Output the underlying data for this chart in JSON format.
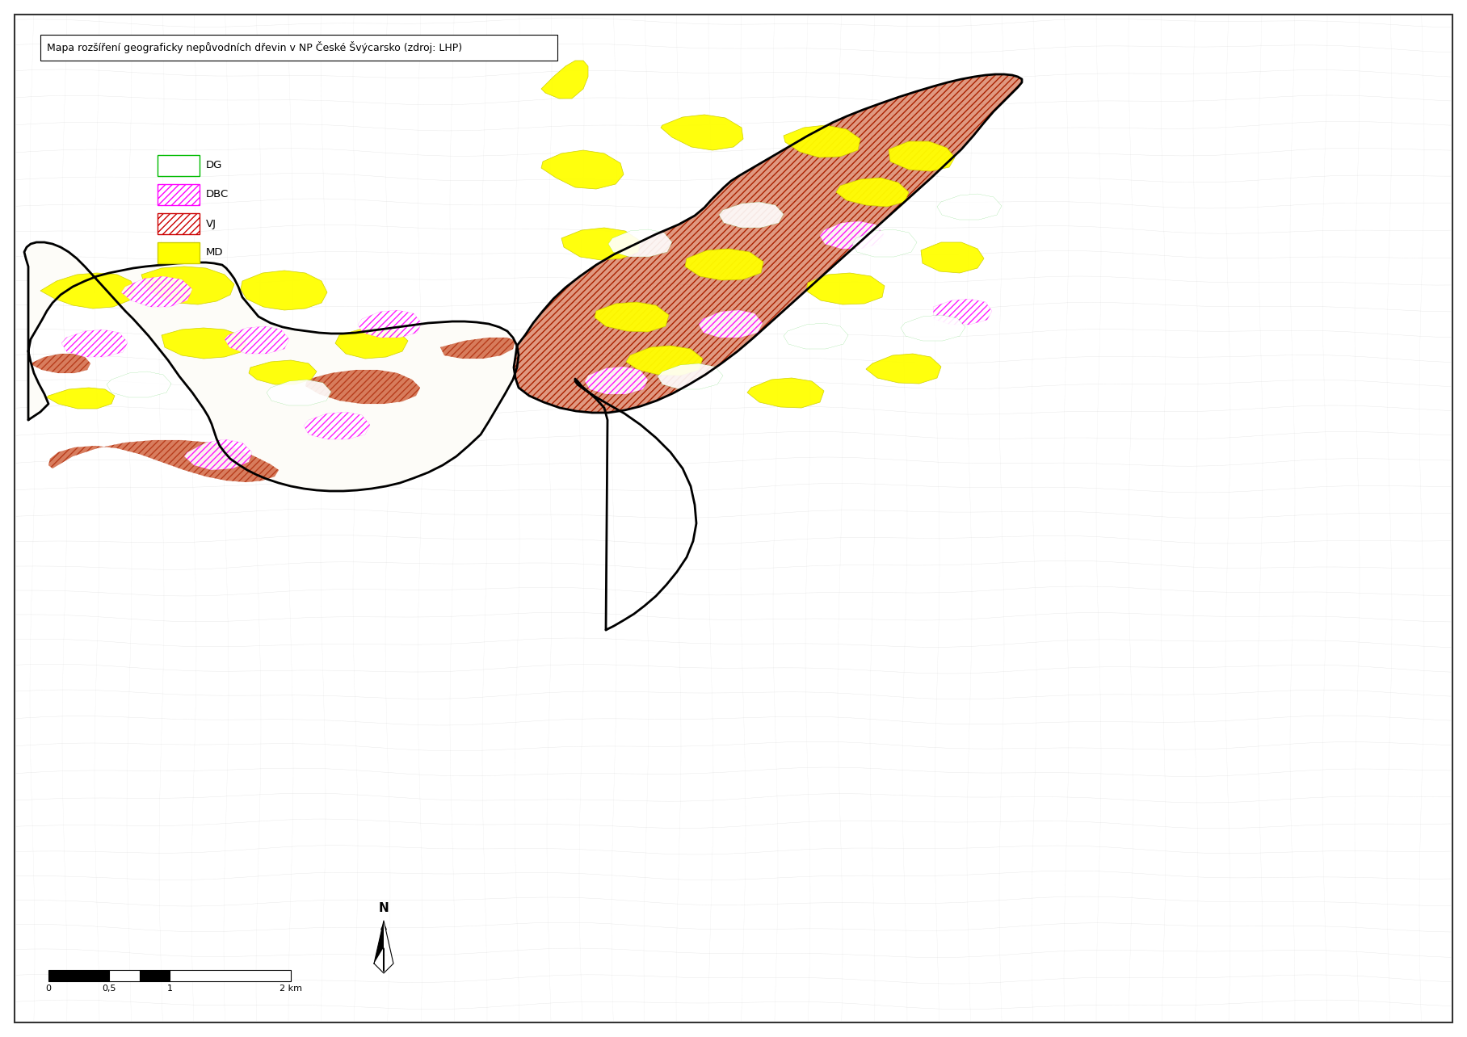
{
  "title": "Mapa rozšíření geograficky nepůvodních dřevin v NP České Švýcarsko (zdroj: LHP)",
  "background_color": "#ffffff",
  "border_color": "#000000",
  "title_fontsize": 9.0,
  "legend_fontsize": 9.5,
  "legend_items": [
    {
      "label": "DG",
      "hatch": "====",
      "facecolor": "#ffffff",
      "edgecolor": "#00bb00"
    },
    {
      "label": "DBC",
      "hatch": "////",
      "facecolor": "#ffffff",
      "edgecolor": "#ff00ff"
    },
    {
      "label": "VJ",
      "hatch": "////",
      "facecolor": "#ffffff",
      "edgecolor": "#cc0000"
    },
    {
      "label": "MD",
      "hatch": "",
      "facecolor": "#ffff00",
      "edgecolor": "#cccc00"
    }
  ],
  "map_bg_color": "#f0ede8",
  "outside_park_color": "#e8e8e8",
  "vj_face": "#cc3300",
  "vj_hatch_color": "#aa1100",
  "md_face": "#ffff00",
  "dbc_face": "#ff00ff",
  "dg_face": "#00bb00",
  "park_boundary_color": "#000000",
  "park_boundary_lw": 2.0,
  "scale_ticks": [
    "0",
    "0,5",
    "1",
    "2 km"
  ],
  "north_label": "N"
}
